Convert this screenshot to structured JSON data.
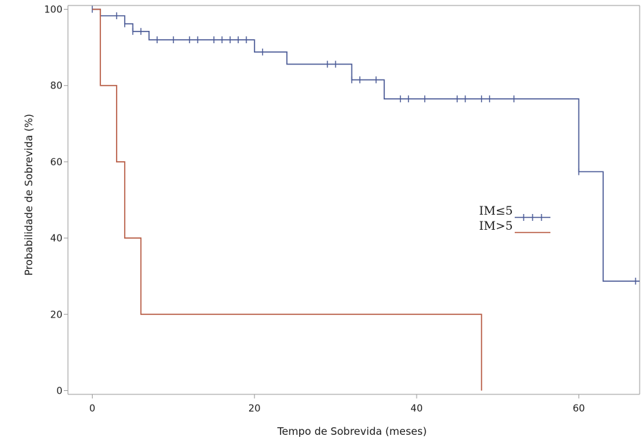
{
  "chart_data": {
    "type": "line",
    "title": "",
    "xlabel": "Tempo de Sobrevida (meses)",
    "ylabel": "Probabilidade de Sobrevida (%)",
    "xlim": [
      -3,
      67.5
    ],
    "ylim": [
      -1,
      101
    ],
    "x_ticks": [
      0,
      20,
      40,
      60
    ],
    "y_ticks": [
      0,
      20,
      40,
      60,
      80,
      100
    ],
    "grid": false,
    "legend_position": "right-middle",
    "series": [
      {
        "name": "IM≤5",
        "color": "#4a5a96",
        "line_style": "step",
        "steps": [
          [
            0,
            100
          ],
          [
            1,
            98.3
          ],
          [
            4,
            96.2
          ],
          [
            5,
            94.2
          ],
          [
            7,
            92
          ],
          [
            20,
            88.8
          ],
          [
            24,
            85.6
          ],
          [
            32,
            81.5
          ],
          [
            36,
            76.5
          ],
          [
            60,
            57.4
          ],
          [
            63,
            28.7
          ],
          [
            67.5,
            28.7
          ]
        ],
        "censored": [
          [
            0,
            100
          ],
          [
            3,
            98.3
          ],
          [
            4,
            96.2
          ],
          [
            5,
            94.2
          ],
          [
            6,
            94.2
          ],
          [
            8,
            92
          ],
          [
            10,
            92
          ],
          [
            12,
            92
          ],
          [
            13,
            92
          ],
          [
            15,
            92
          ],
          [
            16,
            92
          ],
          [
            17,
            92
          ],
          [
            18,
            92
          ],
          [
            19,
            92
          ],
          [
            21,
            88.8
          ],
          [
            29,
            85.6
          ],
          [
            30,
            85.6
          ],
          [
            32,
            81.5
          ],
          [
            33,
            81.5
          ],
          [
            35,
            81.5
          ],
          [
            38,
            76.5
          ],
          [
            39,
            76.5
          ],
          [
            41,
            76.5
          ],
          [
            45,
            76.5
          ],
          [
            46,
            76.5
          ],
          [
            48,
            76.5
          ],
          [
            49,
            76.5
          ],
          [
            52,
            76.5
          ],
          [
            60,
            57.4
          ],
          [
            67,
            28.7
          ]
        ]
      },
      {
        "name": "IM>5",
        "color": "#b5573f",
        "line_style": "step",
        "steps": [
          [
            0,
            100
          ],
          [
            1,
            80
          ],
          [
            3,
            60
          ],
          [
            4,
            40
          ],
          [
            6,
            20
          ],
          [
            48,
            0
          ]
        ],
        "censored": []
      }
    ]
  }
}
